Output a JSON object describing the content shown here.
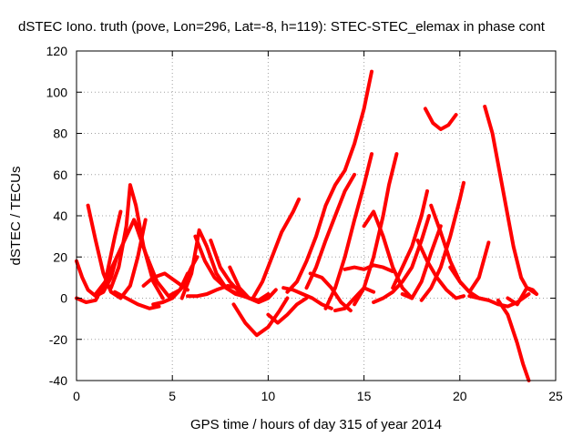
{
  "chart_data": {
    "type": "line",
    "title": "dSTEC Iono. truth (pove, Lon=296, Lat=-8, h=119): STEC-STEC_elemax in phase cont",
    "xlabel": "GPS time / hours of day 315 of year 2014",
    "ylabel": "dSTEC  / TECUs",
    "xlim": [
      0,
      25
    ],
    "ylim": [
      -40,
      120
    ],
    "xticks": [
      0,
      5,
      10,
      15,
      20,
      25
    ],
    "yticks": [
      -40,
      -20,
      0,
      20,
      40,
      60,
      80,
      100,
      120
    ],
    "grid": true,
    "legend": "none",
    "series_color": "#ff0000",
    "series": [
      {
        "x": [
          0.0,
          0.3,
          0.6,
          1.0,
          1.4,
          1.8,
          2.1
        ],
        "y": [
          18,
          10,
          4,
          1,
          3,
          10,
          20
        ]
      },
      {
        "x": [
          0.0,
          0.5,
          1.0,
          1.5,
          2.0,
          2.3
        ],
        "y": [
          0,
          -2,
          -1,
          8,
          30,
          42
        ]
      },
      {
        "x": [
          0.6,
          1.0,
          1.4,
          1.8,
          2.3,
          2.8,
          3.2,
          3.6
        ],
        "y": [
          45,
          28,
          12,
          3,
          0,
          6,
          20,
          38
        ]
      },
      {
        "x": [
          1.0,
          1.5,
          2.0,
          2.5,
          3.0,
          3.4
        ],
        "y": [
          2,
          8,
          18,
          28,
          38,
          30
        ]
      },
      {
        "x": [
          1.8,
          2.2,
          2.6,
          2.8,
          3.1,
          3.5,
          4.0,
          4.5
        ],
        "y": [
          5,
          15,
          35,
          55,
          45,
          25,
          8,
          0
        ]
      },
      {
        "x": [
          2.0,
          2.6,
          3.2,
          3.8,
          4.3
        ],
        "y": [
          3,
          0,
          -3,
          -5,
          -4
        ]
      },
      {
        "x": [
          3.0,
          3.6,
          4.2,
          4.8,
          5.4,
          5.8
        ],
        "y": [
          38,
          22,
          8,
          1,
          4,
          12
        ]
      },
      {
        "x": [
          4.0,
          4.5,
          5.0,
          5.5,
          6.0,
          6.3
        ],
        "y": [
          -3,
          -2,
          0,
          5,
          15,
          20
        ]
      },
      {
        "x": [
          3.5,
          4.0,
          4.6,
          5.2,
          5.8
        ],
        "y": [
          6,
          10,
          12,
          8,
          4
        ]
      },
      {
        "x": [
          5.5,
          6.0,
          6.4,
          6.8,
          7.3,
          7.8,
          8.3,
          8.7
        ],
        "y": [
          0,
          12,
          33,
          25,
          12,
          5,
          2,
          1
        ]
      },
      {
        "x": [
          6.2,
          6.7,
          7.2,
          7.8,
          8.4,
          9.0,
          9.4
        ],
        "y": [
          30,
          18,
          10,
          5,
          2,
          0,
          -1
        ]
      },
      {
        "x": [
          5.8,
          6.3,
          6.8,
          7.3,
          7.9,
          8.4
        ],
        "y": [
          1,
          1,
          2,
          4,
          6,
          5
        ]
      },
      {
        "x": [
          7.0,
          7.5,
          8.0,
          8.5,
          9.0,
          9.5,
          10.0
        ],
        "y": [
          28,
          15,
          8,
          3,
          0,
          -1,
          2
        ]
      },
      {
        "x": [
          8.0,
          8.5,
          9.0,
          9.5,
          10.0,
          10.4
        ],
        "y": [
          15,
          5,
          0,
          -2,
          0,
          4
        ]
      },
      {
        "x": [
          8.2,
          8.8,
          9.4,
          10.0,
          10.6,
          11.0
        ],
        "y": [
          -3,
          -12,
          -18,
          -14,
          -6,
          0
        ]
      },
      {
        "x": [
          9.2,
          9.7,
          10.2,
          10.7,
          11.3,
          11.6
        ],
        "y": [
          0,
          8,
          20,
          32,
          42,
          48
        ]
      },
      {
        "x": [
          10.0,
          10.5,
          11.0,
          11.5,
          12.0
        ],
        "y": [
          -8,
          -12,
          -8,
          -3,
          0
        ]
      },
      {
        "x": [
          11.0,
          11.5,
          12.0,
          12.5,
          13.0,
          13.5,
          14.0,
          14.5,
          15.0,
          15.4
        ],
        "y": [
          3,
          8,
          18,
          30,
          45,
          55,
          62,
          75,
          92,
          110
        ]
      },
      {
        "x": [
          10.8,
          11.3,
          11.8,
          12.3,
          12.8,
          13.3
        ],
        "y": [
          5,
          4,
          2,
          0,
          -3,
          -5
        ]
      },
      {
        "x": [
          12.0,
          12.5,
          13.0,
          13.5,
          14.0,
          14.5
        ],
        "y": [
          5,
          15,
          28,
          40,
          52,
          60
        ]
      },
      {
        "x": [
          13.0,
          13.5,
          14.0,
          14.5,
          15.0,
          15.4
        ],
        "y": [
          -5,
          5,
          20,
          38,
          55,
          70
        ]
      },
      {
        "x": [
          12.2,
          12.8,
          13.3,
          13.8,
          14.3
        ],
        "y": [
          12,
          10,
          5,
          -2,
          -6
        ]
      },
      {
        "x": [
          13.5,
          14.0,
          14.5,
          15.0,
          15.5
        ],
        "y": [
          -6,
          -5,
          0,
          5,
          3
        ]
      },
      {
        "x": [
          14.0,
          14.5,
          15.0,
          15.5,
          16.0,
          16.5
        ],
        "y": [
          14,
          15,
          14,
          16,
          15,
          13
        ]
      },
      {
        "x": [
          14.5,
          15.0,
          15.5,
          16.0,
          16.3,
          16.7
        ],
        "y": [
          -3,
          5,
          20,
          40,
          55,
          70
        ]
      },
      {
        "x": [
          15.0,
          15.5,
          16.0,
          16.5,
          17.0,
          17.5
        ],
        "y": [
          35,
          42,
          30,
          15,
          5,
          0
        ]
      },
      {
        "x": [
          15.5,
          16.0,
          16.5,
          17.0,
          17.5,
          18.0,
          18.4
        ],
        "y": [
          -2,
          0,
          3,
          8,
          15,
          28,
          40
        ]
      },
      {
        "x": [
          16.5,
          17.0,
          17.5,
          18.0,
          18.3
        ],
        "y": [
          5,
          15,
          25,
          40,
          52
        ]
      },
      {
        "x": [
          17.0,
          17.5,
          18.0,
          18.5,
          19.0
        ],
        "y": [
          2,
          0,
          8,
          22,
          35
        ]
      },
      {
        "x": [
          17.8,
          18.3,
          18.8,
          19.3,
          19.8,
          20.2
        ],
        "y": [
          28,
          18,
          10,
          4,
          0,
          1
        ]
      },
      {
        "x": [
          18.0,
          18.5,
          19.0,
          19.5,
          20.0,
          20.2
        ],
        "y": [
          -1,
          5,
          15,
          30,
          48,
          56
        ]
      },
      {
        "x": [
          18.5,
          19.0,
          19.5,
          20.0,
          20.5,
          21.0,
          21.5
        ],
        "y": [
          45,
          32,
          18,
          8,
          3,
          0,
          -1
        ]
      },
      {
        "x": [
          18.2,
          18.6,
          19.0,
          19.4,
          19.8
        ],
        "y": [
          92,
          85,
          82,
          84,
          89
        ]
      },
      {
        "x": [
          19.5,
          20.0,
          20.5,
          21.0,
          21.5
        ],
        "y": [
          15,
          8,
          3,
          10,
          27
        ]
      },
      {
        "x": [
          21.3,
          21.7,
          22.0,
          22.4,
          22.8,
          23.2,
          23.5,
          23.8,
          24.0
        ],
        "y": [
          93,
          80,
          65,
          45,
          25,
          10,
          5,
          4,
          2
        ]
      },
      {
        "x": [
          20.5,
          21.0,
          21.5,
          22.0,
          22.5,
          23.0,
          23.6
        ],
        "y": [
          1,
          0,
          -1,
          -3,
          -4,
          -2,
          2
        ]
      },
      {
        "x": [
          22.5,
          23.0,
          23.5,
          24.0
        ],
        "y": [
          0,
          -3,
          5,
          2
        ]
      },
      {
        "x": [
          22.0,
          22.5,
          23.0,
          23.3,
          23.6
        ],
        "y": [
          -1,
          -8,
          -22,
          -32,
          -40
        ]
      }
    ]
  }
}
